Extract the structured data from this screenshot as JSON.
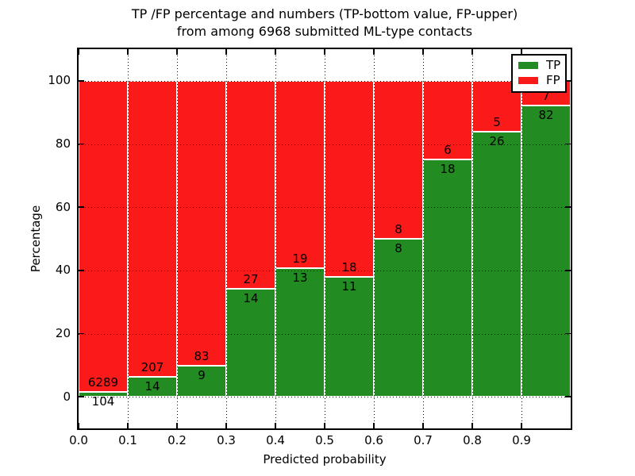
{
  "title": {
    "line1": "TP /FP percentage and numbers (TP-bottom value, FP-upper)",
    "line2": "from among 6968 submitted ML-type contacts"
  },
  "axes": {
    "xlabel": "Predicted probability",
    "ylabel": "Percentage",
    "x_tick_labels": [
      "0.0",
      "0.1",
      "0.2",
      "0.3",
      "0.4",
      "0.5",
      "0.6",
      "0.7",
      "0.8",
      "0.9"
    ],
    "y_tick_labels": [
      "0",
      "20",
      "40",
      "60",
      "80",
      "100"
    ]
  },
  "legend": {
    "items": [
      {
        "label": "TP",
        "color": "#228b22"
      },
      {
        "label": "FP",
        "color": "#fa1a1a"
      }
    ]
  },
  "chart_data": {
    "type": "bar",
    "stacked": true,
    "percent_normalized": true,
    "title": "TP /FP percentage and numbers (TP-bottom value, FP-upper) from among 6968 submitted ML-type contacts",
    "xlabel": "Predicted probability",
    "ylabel": "Percentage",
    "total_contacts": 6968,
    "bin_edges": [
      0.0,
      0.1,
      0.2,
      0.3,
      0.4,
      0.5,
      0.6,
      0.7,
      0.8,
      0.9,
      1.0
    ],
    "series": [
      {
        "name": "TP",
        "color": "#228b22",
        "counts": [
          104,
          14,
          9,
          14,
          13,
          11,
          8,
          18,
          26,
          82
        ]
      },
      {
        "name": "FP",
        "color": "#fa1a1a",
        "counts": [
          6289,
          207,
          83,
          27,
          19,
          18,
          8,
          6,
          5,
          7
        ]
      }
    ],
    "tp_percent": [
      1.63,
      6.33,
      9.78,
      34.15,
      40.63,
      37.93,
      50.0,
      75.0,
      83.87,
      92.13
    ],
    "xlim": [
      0.0,
      1.0
    ],
    "ylim": [
      -10,
      110
    ],
    "x_ticks": [
      0.0,
      0.1,
      0.2,
      0.3,
      0.4,
      0.5,
      0.6,
      0.7,
      0.8,
      0.9
    ],
    "y_ticks": [
      0,
      20,
      40,
      60,
      80,
      100
    ],
    "grid": true,
    "grid_style": "dotted",
    "bar_edge_color": "#ffffff",
    "legend_position": "upper right"
  }
}
